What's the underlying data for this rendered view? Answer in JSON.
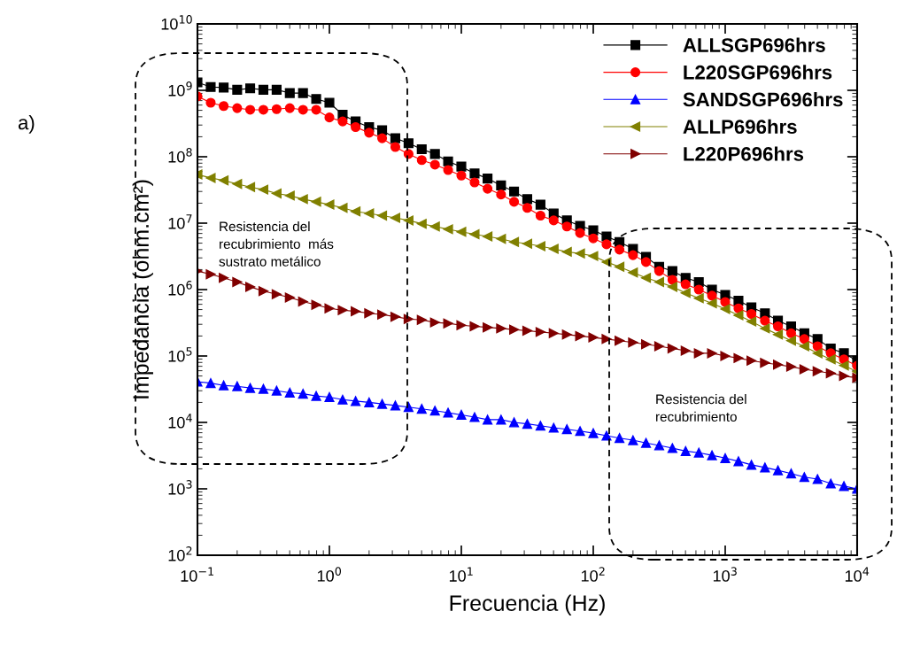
{
  "chart_data": {
    "type": "line",
    "xlabel": "Frecuencia (Hz)",
    "ylabel": "Impedancia (ohm.cm²)",
    "annotations": [
      "a)",
      "Resistencia del\nrecubrimiento  más\nsustrato metálico",
      "Resistencia del\nrecubrimiento"
    ],
    "log": "xy",
    "grid": false,
    "legend": "top right",
    "line_style": "solid",
    "xlim": [
      0.1,
      10000
    ],
    "ylim": [
      100,
      10000000000
    ],
    "xticks": [
      {
        "value": 0.1,
        "label": "10$^{−1}$"
      },
      {
        "value": 1,
        "label": "10$^{0}$"
      },
      {
        "value": 10,
        "label": "10$^{1}$"
      },
      {
        "value": 100,
        "label": "10$^{2}$"
      },
      {
        "value": 1000,
        "label": "10$^{3}$"
      },
      {
        "value": 10000,
        "label": "10$^{4}$"
      }
    ],
    "yticks": [
      {
        "value": 100,
        "label": "10$^{2}$"
      },
      {
        "value": 1000,
        "label": "10$^{3}$"
      },
      {
        "value": 10000,
        "label": "10$^{4}$"
      },
      {
        "value": 100000,
        "label": "10$^{5}$"
      },
      {
        "value": 1000000,
        "label": "10$^{6}$"
      },
      {
        "value": 10000000,
        "label": "10$^{7}$"
      },
      {
        "value": 100000000,
        "label": "10$^{8}$"
      },
      {
        "value": 1000000000,
        "label": "10$^{9}$"
      },
      {
        "value": 10000000000,
        "label": "10$^{10}$"
      }
    ],
    "x": [
      0.1,
      0.126,
      0.158,
      0.2,
      0.251,
      0.316,
      0.398,
      0.501,
      0.631,
      0.794,
      1,
      1.26,
      1.58,
      2,
      2.51,
      3.16,
      3.98,
      5.01,
      6.31,
      7.94,
      10,
      12.6,
      15.8,
      20,
      25.1,
      31.6,
      39.8,
      50.1,
      63.1,
      79.4,
      100,
      126,
      158,
      200,
      251,
      316,
      398,
      501,
      631,
      794,
      1000,
      1260,
      1580,
      2000,
      2510,
      3160,
      3980,
      5010,
      6310,
      7940,
      10000
    ],
    "series": [
      {
        "name": "ALLSGP696hrs",
        "color": "#000000",
        "marker": "square",
        "values": [
          1320000000.0,
          1120000000.0,
          1100000000.0,
          1020000000.0,
          1070000000.0,
          1020000000.0,
          1020000000.0,
          910000000.0,
          910000000.0,
          740000000.0,
          650000000.0,
          430000000.0,
          340000000.0,
          280000000.0,
          250000000.0,
          190000000.0,
          160000000.0,
          130000000.0,
          110000000.0,
          85000000.0,
          71000000.0,
          56000000.0,
          47000000.0,
          37000000.0,
          30000000.0,
          23000000.0,
          19000000.0,
          14000000.0,
          11000000.0,
          9100000.0,
          7800000.0,
          6300000.0,
          5200000.0,
          4100000.0,
          3100000.0,
          2200000.0,
          1900000.0,
          1500000.0,
          1300000.0,
          1000000.0,
          830000.0,
          680000.0,
          540000.0,
          440000.0,
          340000.0,
          280000.0,
          220000.0,
          180000.0,
          130000.0,
          110000.0,
          85000.0
        ]
      },
      {
        "name": "L220SGP696hrs",
        "color": "#ff0000",
        "marker": "circle",
        "values": [
          810000000.0,
          650000000.0,
          580000000.0,
          540000000.0,
          510000000.0,
          510000000.0,
          520000000.0,
          540000000.0,
          510000000.0,
          510000000.0,
          390000000.0,
          340000000.0,
          280000000.0,
          230000000.0,
          190000000.0,
          140000000.0,
          110000000.0,
          89000000.0,
          76000000.0,
          63000000.0,
          52000000.0,
          41000000.0,
          33000000.0,
          27000000.0,
          21000000.0,
          17000000.0,
          13000000.0,
          11000000.0,
          8900000.0,
          7100000.0,
          5900000.0,
          4800000.0,
          4000000.0,
          3300000.0,
          2600000.0,
          1900000.0,
          1400000.0,
          1200000.0,
          1000000.0,
          810000.0,
          650000.0,
          520000.0,
          430000.0,
          340000.0,
          280000.0,
          220000.0,
          180000.0,
          140000.0,
          110000.0,
          89000.0,
          71000.0
        ]
      },
      {
        "name": "SANDSGP696hrs",
        "color": "#0000ff",
        "marker": "triangle",
        "values": [
          41000.0,
          39000.0,
          36000.0,
          35000.0,
          33000.0,
          32000.0,
          30000.0,
          28000.0,
          27000.0,
          25000.0,
          24000.0,
          22000.0,
          21000.0,
          20000.0,
          19000.0,
          18000.0,
          17000.0,
          16000.0,
          15000.0,
          14000.0,
          13000.0,
          12000.0,
          11000.0,
          11000.0,
          10000.0,
          9500.0,
          8900.0,
          8300.0,
          7900.0,
          7400.0,
          6900.0,
          6300.0,
          5800.0,
          5400.0,
          4900.0,
          4500.0,
          4100.0,
          3700.0,
          3500.0,
          3200.0,
          2900.0,
          2600.0,
          2300.0,
          2100.0,
          1900.0,
          1700.0,
          1500.0,
          1400.0,
          1200.0,
          1100.0,
          1000.0
        ]
      },
      {
        "name": "ALLP696hrs",
        "color": "#808000",
        "marker": "triangle-left",
        "values": [
          54000000.0,
          48000000.0,
          44000000.0,
          39000000.0,
          35000000.0,
          32000000.0,
          28000000.0,
          26000000.0,
          23000000.0,
          21000000.0,
          19000000.0,
          17000000.0,
          15000000.0,
          14000000.0,
          13000000.0,
          12000000.0,
          11000000.0,
          9800000.0,
          8900000.0,
          8100000.0,
          7400000.0,
          6800000.0,
          6300000.0,
          5800000.0,
          5200000.0,
          4900000.0,
          4500000.0,
          4100000.0,
          3700000.0,
          3500000.0,
          3200000.0,
          2600000.0,
          2200000.0,
          1800000.0,
          1500000.0,
          1300000.0,
          1100000.0,
          890000.0,
          740000.0,
          620000.0,
          510000.0,
          410000.0,
          330000.0,
          260000.0,
          210000.0,
          170000.0,
          140000.0,
          110000.0,
          89000.0,
          72000.0,
          58000.0
        ]
      },
      {
        "name": "L220P696hrs",
        "color": "#800000",
        "marker": "triangle-right",
        "values": [
          1900000.0,
          1700000.0,
          1500000.0,
          1300000.0,
          1100000.0,
          950000.0,
          850000.0,
          760000.0,
          660000.0,
          590000.0,
          520000.0,
          490000.0,
          470000.0,
          440000.0,
          420000.0,
          390000.0,
          360000.0,
          350000.0,
          320000.0,
          310000.0,
          290000.0,
          280000.0,
          270000.0,
          260000.0,
          250000.0,
          240000.0,
          230000.0,
          220000.0,
          210000.0,
          200000.0,
          190000.0,
          180000.0,
          170000.0,
          160000.0,
          150000.0,
          140000.0,
          130000.0,
          120000.0,
          110000.0,
          110000.0,
          100000.0,
          93000.0,
          85000.0,
          79000.0,
          74000.0,
          69000.0,
          63000.0,
          59000.0,
          55000.0,
          50000.0,
          47000.0
        ]
      }
    ]
  }
}
